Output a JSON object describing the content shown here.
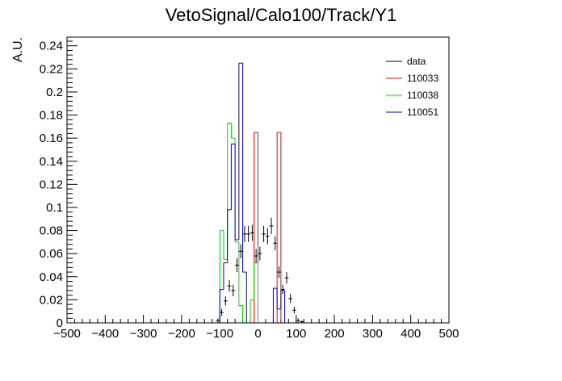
{
  "chart_data": {
    "type": "histogram",
    "title": "VetoSignal/Calo100/Track/Y1",
    "xlabel": "",
    "ylabel": "A.U.",
    "xlim": [
      -500,
      500
    ],
    "ylim": [
      0,
      0.2475
    ],
    "bin_width": 10,
    "grid": false,
    "legend_position": "top-right",
    "xticks": [
      -500,
      -400,
      -300,
      -200,
      -100,
      0,
      100,
      200,
      300,
      400,
      500
    ],
    "xtick_labels": [
      "−500",
      "−400",
      "−300",
      "−200",
      "−100",
      "0",
      "100",
      "200",
      "300",
      "400",
      "500"
    ],
    "yticks": [
      0,
      0.02,
      0.04,
      0.06,
      0.08,
      0.1,
      0.12,
      0.14,
      0.16,
      0.18,
      0.2,
      0.22,
      0.24
    ],
    "ytick_labels": [
      "0",
      "0.02",
      "0.04",
      "0.06",
      "0.08",
      "0.1",
      "0.12",
      "0.14",
      "0.16",
      "0.18",
      "0.2",
      "0.22",
      "0.24"
    ],
    "series": [
      {
        "name": "data",
        "color": "#000000",
        "style": "points",
        "x": [
          -105,
          -95,
          -85,
          -75,
          -65,
          -55,
          -45,
          -35,
          -25,
          -15,
          -5,
          5,
          15,
          25,
          35,
          45,
          55,
          65,
          75,
          85,
          95,
          105,
          115
        ],
        "y": [
          0.002,
          0.009,
          0.019,
          0.032,
          0.028,
          0.05,
          0.062,
          0.077,
          0.077,
          0.078,
          0.058,
          0.06,
          0.077,
          0.075,
          0.084,
          0.069,
          0.044,
          0.029,
          0.039,
          0.021,
          0.011,
          0.002,
          0.001
        ],
        "yerr": [
          0.002,
          0.003,
          0.004,
          0.005,
          0.005,
          0.006,
          0.006,
          0.007,
          0.007,
          0.007,
          0.006,
          0.006,
          0.007,
          0.007,
          0.007,
          0.006,
          0.005,
          0.004,
          0.005,
          0.004,
          0.003,
          0.002,
          0.001
        ]
      },
      {
        "name": "110033",
        "color": "#ff0000",
        "style": "step",
        "x0": -10,
        "y": [
          0.165,
          0.0,
          0.0,
          0.0,
          0.0,
          0.0,
          0.165,
          0.0
        ]
      },
      {
        "name": "110038",
        "color": "#00dd00",
        "style": "step",
        "x0": -100,
        "y": [
          0.08,
          0.055,
          0.173,
          0.16,
          0.07,
          0.015,
          0.0,
          0.0,
          0.02,
          0.052,
          0.0,
          0.0,
          0.0,
          0.0,
          0.0,
          0.0,
          0.0
        ]
      },
      {
        "name": "110051",
        "color": "#0000cc",
        "style": "step",
        "x0": -100,
        "y": [
          0.029,
          0.052,
          0.098,
          0.155,
          0.072,
          0.225,
          0.044,
          0.0,
          0.0,
          0.0,
          0.0,
          0.0,
          0.0,
          0.0,
          0.03,
          0.012,
          0.028
        ]
      }
    ]
  }
}
